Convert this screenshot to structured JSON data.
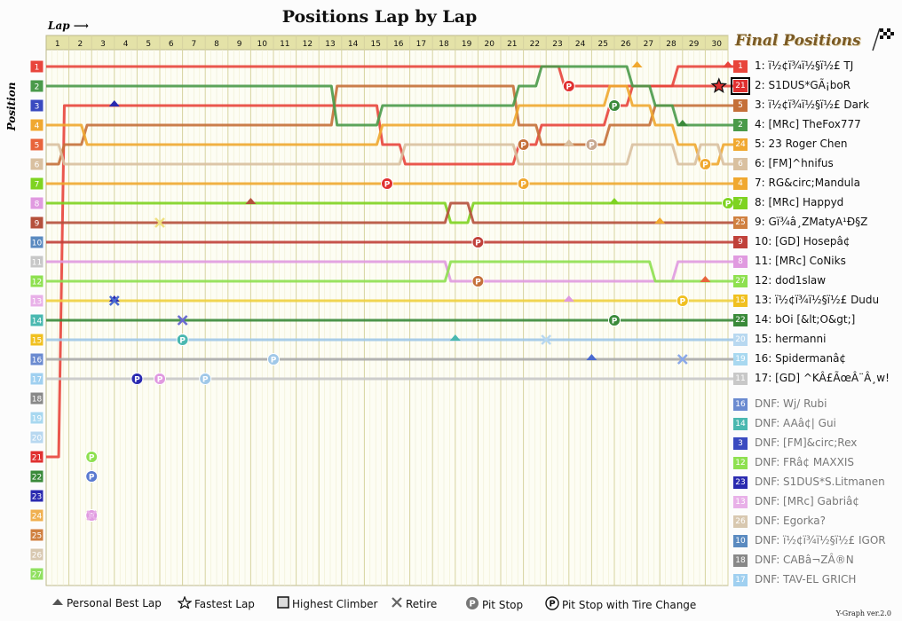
{
  "title": "Positions Lap by Lap",
  "lap_axis_label": "Lap",
  "position_axis_label": "Position",
  "final_title": "Final Positions",
  "version": "Y-Graph ver.2.0",
  "chart_data": {
    "type": "line",
    "title": "Positions Lap by Lap",
    "xlabel": "Lap",
    "ylabel": "Position",
    "x": [
      0,
      1,
      2,
      3,
      4,
      5,
      6,
      7,
      8,
      9,
      10,
      11,
      12,
      13,
      14,
      15,
      16,
      17,
      18,
      19,
      20,
      21,
      22,
      23,
      24,
      25,
      26,
      27,
      28,
      29,
      30
    ],
    "lap_ticks": [
      1,
      2,
      3,
      4,
      5,
      6,
      7,
      8,
      9,
      10,
      11,
      12,
      13,
      14,
      15,
      16,
      17,
      18,
      19,
      20,
      21,
      22,
      23,
      24,
      25,
      26,
      27,
      28,
      29,
      30
    ],
    "position_ticks": [
      1,
      2,
      3,
      4,
      5,
      6,
      7,
      8,
      9,
      10,
      11,
      12,
      13,
      14,
      15,
      16,
      17,
      18,
      19,
      20,
      21,
      22,
      23,
      24,
      25,
      26,
      27
    ],
    "ylim": [
      1,
      27
    ],
    "series": [
      {
        "name": "ï½¢ï¾ï½§ï½£ TJ",
        "color": "#e8453c",
        "values": [
          1,
          1,
          1,
          1,
          1,
          1,
          1,
          1,
          1,
          1,
          1,
          1,
          1,
          1,
          1,
          1,
          1,
          1,
          1,
          1,
          1,
          1,
          1,
          2,
          2,
          2,
          2,
          2,
          1,
          1,
          1
        ]
      },
      {
        "name": "S1DUS*GÃ¡boR",
        "color": "#e8453c",
        "values": [
          21,
          3,
          3,
          3,
          3,
          3,
          3,
          3,
          3,
          3,
          3,
          3,
          3,
          3,
          3,
          5,
          6,
          6,
          6,
          6,
          6,
          5,
          4,
          4,
          4,
          3,
          2,
          2,
          2,
          2,
          2
        ]
      },
      {
        "name": "ï½¢ï¾ï½§ï½£ Dark",
        "color": "#c5703a",
        "values": [
          6,
          5,
          4,
          4,
          4,
          4,
          4,
          4,
          4,
          4,
          4,
          4,
          4,
          2,
          2,
          2,
          2,
          2,
          2,
          2,
          2,
          4,
          5,
          5,
          5,
          4,
          4,
          3,
          3,
          3,
          3
        ]
      },
      {
        "name": "[MRc] TheFox777",
        "color": "#4a9a4a",
        "values": [
          2,
          2,
          2,
          2,
          2,
          2,
          2,
          2,
          2,
          2,
          2,
          2,
          2,
          4,
          4,
          3,
          3,
          3,
          3,
          3,
          3,
          2,
          1,
          1,
          1,
          1,
          2,
          3,
          4,
          4,
          4
        ]
      },
      {
        "name": "23 Roger Chen",
        "color": "#f0a830",
        "values": [
          4,
          4,
          5,
          5,
          5,
          5,
          5,
          5,
          5,
          5,
          5,
          5,
          5,
          5,
          5,
          4,
          4,
          4,
          4,
          4,
          4,
          3,
          3,
          3,
          3,
          2,
          3,
          4,
          5,
          6,
          5
        ]
      },
      {
        "name": "[FM]^hnifus",
        "color": "#d9c0a0",
        "values": [
          5,
          6,
          6,
          6,
          6,
          6,
          6,
          6,
          6,
          6,
          6,
          6,
          6,
          6,
          6,
          6,
          5,
          5,
          5,
          5,
          5,
          6,
          6,
          6,
          6,
          6,
          5,
          5,
          6,
          5,
          6
        ]
      },
      {
        "name": "RG&circ;Mandula",
        "color": "#f0a830",
        "values": [
          7,
          7,
          7,
          7,
          7,
          7,
          7,
          7,
          7,
          7,
          7,
          7,
          7,
          7,
          7,
          7,
          7,
          7,
          7,
          7,
          7,
          7,
          7,
          7,
          7,
          7,
          7,
          7,
          7,
          7,
          7
        ]
      },
      {
        "name": "[MRc] Happyd",
        "color": "#7ed321",
        "values": [
          8,
          8,
          8,
          8,
          8,
          8,
          8,
          8,
          8,
          8,
          8,
          8,
          8,
          8,
          8,
          8,
          8,
          8,
          9,
          8,
          8,
          8,
          8,
          8,
          8,
          8,
          8,
          8,
          8,
          8,
          8
        ]
      },
      {
        "name": "Gï¾â¸ZMatyA¹Ð§Z",
        "color": "#b5503c",
        "values": [
          9,
          9,
          9,
          9,
          9,
          9,
          9,
          9,
          9,
          9,
          9,
          9,
          9,
          9,
          9,
          9,
          9,
          9,
          8,
          9,
          9,
          9,
          9,
          9,
          9,
          9,
          9,
          9,
          9,
          9,
          9
        ]
      },
      {
        "name": "[GD] Hosepâ¢",
        "color": "#c0403a",
        "values": [
          10,
          10,
          10,
          10,
          10,
          10,
          10,
          10,
          10,
          10,
          10,
          10,
          10,
          10,
          10,
          10,
          10,
          10,
          10,
          10,
          10,
          10,
          10,
          10,
          10,
          10,
          10,
          10,
          10,
          10,
          10
        ]
      },
      {
        "name": "[MRc] CoNiks",
        "color": "#e09ae0",
        "values": [
          11,
          11,
          11,
          11,
          11,
          11,
          11,
          11,
          11,
          11,
          11,
          11,
          11,
          11,
          11,
          11,
          11,
          11,
          12,
          12,
          12,
          12,
          12,
          12,
          12,
          12,
          12,
          12,
          11,
          11,
          11
        ]
      },
      {
        "name": "dod1slaw",
        "color": "#8ee050",
        "values": [
          12,
          12,
          12,
          12,
          12,
          12,
          12,
          12,
          12,
          12,
          12,
          12,
          12,
          12,
          12,
          12,
          12,
          12,
          11,
          11,
          11,
          11,
          11,
          11,
          11,
          11,
          11,
          12,
          12,
          12,
          12
        ]
      },
      {
        "name": "ï½¢ï¾ï½§ï½£ Dudu",
        "color": "#f0d040",
        "values": [
          13,
          13,
          13,
          13,
          13,
          13,
          13,
          13,
          13,
          13,
          13,
          13,
          13,
          13,
          13,
          13,
          13,
          13,
          13,
          13,
          13,
          13,
          13,
          13,
          13,
          13,
          13,
          13,
          13,
          13,
          13
        ]
      },
      {
        "name": "bOi [&lt;O&gt;]",
        "color": "#3a8a3a",
        "values": [
          14,
          14,
          14,
          14,
          14,
          14,
          14,
          14,
          14,
          14,
          14,
          14,
          14,
          14,
          14,
          14,
          14,
          14,
          14,
          14,
          14,
          14,
          14,
          14,
          14,
          14,
          14,
          14,
          14,
          14,
          14
        ]
      },
      {
        "name": "hermanni",
        "color": "#a0c8e8",
        "values": [
          15,
          15,
          15,
          15,
          15,
          15,
          15,
          15,
          15,
          15,
          15,
          15,
          15,
          15,
          15,
          15,
          15,
          15,
          15,
          15,
          15,
          15,
          15,
          15,
          15,
          15,
          15,
          15,
          15,
          15,
          15
        ]
      },
      {
        "name": "Spidermanâ¢",
        "color": "#aaaaaa",
        "values": [
          16,
          16,
          16,
          16,
          16,
          16,
          16,
          16,
          16,
          16,
          16,
          16,
          16,
          16,
          16,
          16,
          16,
          16,
          16,
          16,
          16,
          16,
          16,
          16,
          16,
          16,
          16,
          16,
          16,
          16,
          16
        ]
      },
      {
        "name": "[GD] ^KÂ£ÃœÂ¨Â¸w!",
        "color": "#c8c8c8",
        "values": [
          17,
          17,
          17,
          17,
          17,
          17,
          17,
          17,
          17,
          17,
          17,
          17,
          17,
          17,
          17,
          17,
          17,
          17,
          17,
          17,
          17,
          17,
          17,
          17,
          17,
          17,
          17,
          17,
          17,
          17,
          17
        ]
      }
    ]
  },
  "start_positions": [
    {
      "n": "1",
      "color": "#e8453c"
    },
    {
      "n": "2",
      "color": "#4a9a4a"
    },
    {
      "n": "3",
      "color": "#3a4ac0"
    },
    {
      "n": "4",
      "color": "#f0a830"
    },
    {
      "n": "5",
      "color": "#e8643c"
    },
    {
      "n": "6",
      "color": "#d9c0a0"
    },
    {
      "n": "7",
      "color": "#7ed321"
    },
    {
      "n": "8",
      "color": "#e09ae0"
    },
    {
      "n": "9",
      "color": "#b5503c"
    },
    {
      "n": "10",
      "color": "#5a8ac0"
    },
    {
      "n": "11",
      "color": "#c8c8c8"
    },
    {
      "n": "12",
      "color": "#8ee050"
    },
    {
      "n": "13",
      "color": "#e8b0e8"
    },
    {
      "n": "14",
      "color": "#4ab8b0"
    },
    {
      "n": "15",
      "color": "#f0c020"
    },
    {
      "n": "16",
      "color": "#6a8ad0"
    },
    {
      "n": "17",
      "color": "#a0d0f0"
    },
    {
      "n": "18",
      "color": "#888888"
    },
    {
      "n": "19",
      "color": "#a8d8f0"
    },
    {
      "n": "20",
      "color": "#b8d8f0"
    },
    {
      "n": "21",
      "color": "#e03030"
    },
    {
      "n": "22",
      "color": "#3a8a3a"
    },
    {
      "n": "23",
      "color": "#2a2ab0"
    },
    {
      "n": "24",
      "color": "#f0b050"
    },
    {
      "n": "25",
      "color": "#d08040"
    },
    {
      "n": "26",
      "color": "#d8c8b0"
    },
    {
      "n": "27",
      "color": "#90e060"
    }
  ],
  "final_positions": [
    {
      "sq": "1",
      "sq_color": "#e8453c",
      "label": "1: ï½¢ï¾ï½§ï½£ TJ",
      "dnf": false,
      "framed": false
    },
    {
      "sq": "21",
      "sq_color": "#e03030",
      "label": "2: S1DUS*GÃ¡boR",
      "dnf": false,
      "framed": true
    },
    {
      "sq": "5",
      "sq_color": "#c5703a",
      "label": "3: ï½¢ï¾ï½§ï½£ Dark",
      "dnf": false,
      "framed": false
    },
    {
      "sq": "2",
      "sq_color": "#4a9a4a",
      "label": "4: [MRc] TheFox777",
      "dnf": false,
      "framed": false
    },
    {
      "sq": "24",
      "sq_color": "#f0a830",
      "label": "5: 23 Roger Chen",
      "dnf": false,
      "framed": false
    },
    {
      "sq": "6",
      "sq_color": "#d9c0a0",
      "label": "6: [FM]^hnifus",
      "dnf": false,
      "framed": false
    },
    {
      "sq": "4",
      "sq_color": "#f0a830",
      "label": "7: RG&circ;Mandula",
      "dnf": false,
      "framed": false
    },
    {
      "sq": "7",
      "sq_color": "#7ed321",
      "label": "8: [MRc] Happyd",
      "dnf": false,
      "framed": false
    },
    {
      "sq": "25",
      "sq_color": "#d08040",
      "label": "9: Gï¾â¸ZMatyA¹Ð§Z",
      "dnf": false,
      "framed": false
    },
    {
      "sq": "9",
      "sq_color": "#c0403a",
      "label": "10: [GD] Hosepâ¢",
      "dnf": false,
      "framed": false
    },
    {
      "sq": "8",
      "sq_color": "#e09ae0",
      "label": "11: [MRc] CoNiks",
      "dnf": false,
      "framed": false
    },
    {
      "sq": "27",
      "sq_color": "#8ee050",
      "label": "12: dod1slaw",
      "dnf": false,
      "framed": false
    },
    {
      "sq": "15",
      "sq_color": "#f0c020",
      "label": "13: ï½¢ï¾ï½§ï½£ Dudu",
      "dnf": false,
      "framed": false
    },
    {
      "sq": "22",
      "sq_color": "#3a8a3a",
      "label": "14: bOi [&lt;O&gt;]",
      "dnf": false,
      "framed": false
    },
    {
      "sq": "20",
      "sq_color": "#b8d8f0",
      "label": "15: hermanni",
      "dnf": false,
      "framed": false
    },
    {
      "sq": "19",
      "sq_color": "#a8d8f0",
      "label": "16: Spidermanâ¢",
      "dnf": false,
      "framed": false
    },
    {
      "sq": "11",
      "sq_color": "#c8c8c8",
      "label": "17: [GD] ^KÂ£ÃœÂ¨Â¸w!",
      "dnf": false,
      "framed": false
    },
    {
      "sq": "16",
      "sq_color": "#6a8ad0",
      "label": "DNF: Wj/ Rubi",
      "dnf": true,
      "framed": false
    },
    {
      "sq": "14",
      "sq_color": "#4ab8b0",
      "label": "DNF: AAâ¢| Gui",
      "dnf": true,
      "framed": false
    },
    {
      "sq": "3",
      "sq_color": "#3a4ac0",
      "label": "DNF: [FM]&circ;Rex",
      "dnf": true,
      "framed": false
    },
    {
      "sq": "12",
      "sq_color": "#8ee050",
      "label": "DNF: FRâ¢ MAXXIS",
      "dnf": true,
      "framed": false
    },
    {
      "sq": "23",
      "sq_color": "#2a2ab0",
      "label": "DNF: S1DUS*S.Litmanen",
      "dnf": true,
      "framed": false
    },
    {
      "sq": "13",
      "sq_color": "#e8b0e8",
      "label": "DNF: [MRc] Gabriâ¢",
      "dnf": true,
      "framed": false
    },
    {
      "sq": "26",
      "sq_color": "#d8c8b0",
      "label": "DNF: Egorka?",
      "dnf": true,
      "framed": false
    },
    {
      "sq": "10",
      "sq_color": "#5a8ac0",
      "label": "DNF: ï½¢ï¾ï½§ï½£ IGOR",
      "dnf": true,
      "framed": false
    },
    {
      "sq": "18",
      "sq_color": "#888888",
      "label": "DNF: CABâ¬ZÂ®N",
      "dnf": true,
      "framed": false
    },
    {
      "sq": "17",
      "sq_color": "#a0d0f0",
      "label": "DNF: TAV-EL GRICH",
      "dnf": true,
      "framed": false
    }
  ],
  "legend": [
    {
      "icon": "triangle",
      "label": "Personal Best Lap"
    },
    {
      "icon": "star",
      "label": "Fastest Lap"
    },
    {
      "icon": "square",
      "label": "Highest Climber"
    },
    {
      "icon": "cross",
      "label": "Retire"
    },
    {
      "icon": "pit",
      "label": "Pit Stop"
    },
    {
      "icon": "pit-tire",
      "label": "Pit Stop with Tire Change"
    }
  ]
}
